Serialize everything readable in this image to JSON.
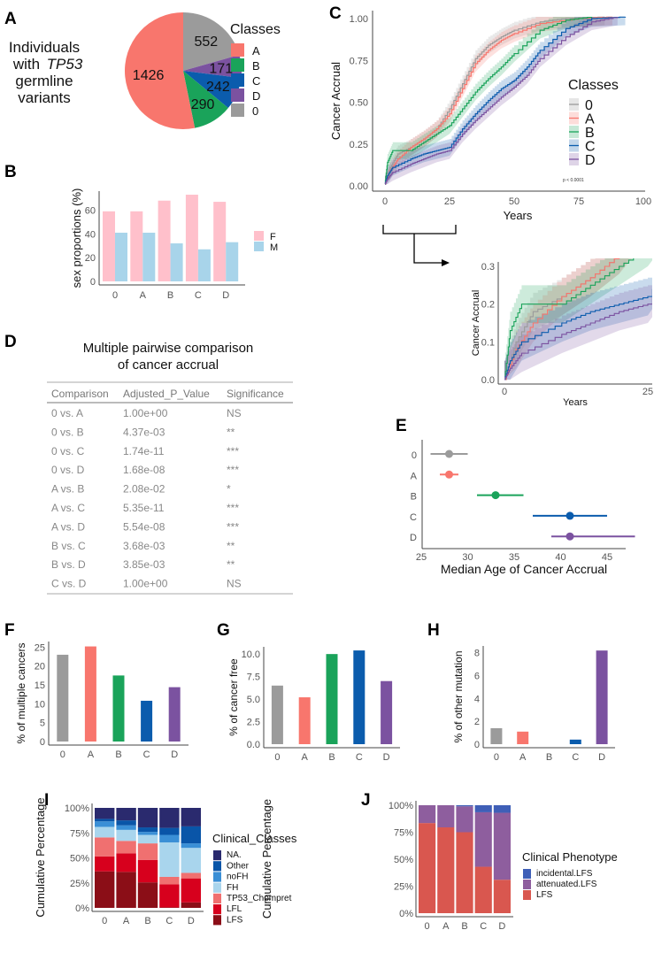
{
  "colors": {
    "0": "#9b9b9b",
    "A": "#f8766d",
    "B": "#1aa35a",
    "C": "#0b5cad",
    "D": "#7b52a0"
  },
  "panel_labels": [
    "A",
    "B",
    "C",
    "D",
    "E",
    "F",
    "G",
    "H",
    "I",
    "J"
  ],
  "chart_data": [
    {
      "id": "A",
      "type": "pie",
      "side_text": [
        "Individuals",
        "with",
        "TP53",
        "germline",
        "variants"
      ],
      "legend_title": "Classes",
      "legend": [
        "A",
        "B",
        "C",
        "D",
        "0"
      ],
      "slices": [
        {
          "label": "0",
          "value": 552
        },
        {
          "label": "D",
          "value": 171
        },
        {
          "label": "C",
          "value": 242
        },
        {
          "label": "B",
          "value": 290
        },
        {
          "label": "A",
          "value": 1426
        }
      ]
    },
    {
      "id": "B",
      "type": "bar",
      "ylabel": "sex proportions (%)",
      "categories": [
        "0",
        "A",
        "B",
        "C",
        "D"
      ],
      "yticks": [
        0,
        20,
        40,
        60
      ],
      "ylim": [
        0,
        76
      ],
      "series": [
        {
          "name": "F",
          "color": "#ffc0cb",
          "values": [
            59,
            59,
            68,
            73,
            67
          ]
        },
        {
          "name": "M",
          "color": "#a8d4ea",
          "values": [
            41,
            41,
            32,
            27,
            33
          ]
        }
      ]
    },
    {
      "id": "C",
      "type": "line",
      "xlabel": "Years",
      "ylabel": "Cancer Accrual",
      "xticks": [
        0,
        25,
        50,
        75,
        100
      ],
      "yticks": [
        "0.00",
        "0.25",
        "0.50",
        "0.75",
        "1.00"
      ],
      "xlim": [
        0,
        100
      ],
      "ylim": [
        0,
        1
      ],
      "legend_title": "Classes",
      "legend_placement": "right",
      "pvalue": "p < 0.0001",
      "series": [
        {
          "name": "0",
          "x": [
            0,
            2,
            5,
            10,
            15,
            20,
            25,
            30,
            35,
            40,
            45,
            50,
            60,
            70,
            85
          ],
          "y": [
            0,
            0.1,
            0.18,
            0.22,
            0.27,
            0.33,
            0.45,
            0.6,
            0.75,
            0.83,
            0.88,
            0.92,
            0.97,
            0.99,
            1
          ]
        },
        {
          "name": "A",
          "x": [
            0,
            2,
            5,
            10,
            15,
            20,
            25,
            30,
            35,
            40,
            45,
            50,
            60,
            75,
            88
          ],
          "y": [
            0,
            0.08,
            0.15,
            0.22,
            0.27,
            0.33,
            0.42,
            0.57,
            0.72,
            0.8,
            0.86,
            0.9,
            0.96,
            0.99,
            1
          ]
        },
        {
          "name": "B",
          "x": [
            0,
            1,
            3,
            10,
            15,
            20,
            25,
            30,
            35,
            40,
            45,
            50,
            60,
            70,
            80
          ],
          "y": [
            0,
            0.13,
            0.2,
            0.2,
            0.25,
            0.3,
            0.35,
            0.45,
            0.55,
            0.63,
            0.7,
            0.78,
            0.92,
            0.98,
            1
          ]
        },
        {
          "name": "C",
          "x": [
            0,
            1,
            3,
            10,
            15,
            20,
            25,
            30,
            35,
            40,
            45,
            50,
            55,
            60,
            70,
            80,
            93
          ],
          "y": [
            0,
            0.05,
            0.1,
            0.15,
            0.18,
            0.2,
            0.22,
            0.33,
            0.42,
            0.5,
            0.57,
            0.62,
            0.7,
            0.8,
            0.93,
            0.99,
            1
          ]
        },
        {
          "name": "D",
          "x": [
            0,
            1,
            3,
            10,
            15,
            20,
            25,
            30,
            35,
            40,
            45,
            50,
            55,
            60,
            70,
            80,
            90
          ],
          "y": [
            0,
            0.03,
            0.07,
            0.12,
            0.15,
            0.18,
            0.2,
            0.3,
            0.38,
            0.45,
            0.52,
            0.58,
            0.65,
            0.75,
            0.88,
            0.97,
            1
          ]
        }
      ],
      "inset": {
        "xlabel": "Years",
        "ylabel": "Cancer Accrual",
        "xticks": [
          0,
          25
        ],
        "yticks": [
          "0.0",
          "0.1",
          "0.2",
          "0.3"
        ],
        "xlim": [
          0,
          26
        ],
        "ylim": [
          0,
          0.3
        ]
      }
    },
    {
      "id": "D",
      "type": "table",
      "title": [
        "Multiple  pairwise comparison",
        "of cancer accrual"
      ],
      "columns": [
        "Comparison",
        "Adjusted_P_Value",
        "Significance"
      ],
      "rows": [
        [
          "0 vs. A",
          "1.00e+00",
          "NS"
        ],
        [
          "0 vs. B",
          "4.37e-03",
          "**"
        ],
        [
          "0 vs. C",
          "1.74e-11",
          "***"
        ],
        [
          "0 vs. D",
          "1.68e-08",
          "***"
        ],
        [
          "A vs. B",
          "2.08e-02",
          "*"
        ],
        [
          "A vs. C",
          "5.35e-11",
          "***"
        ],
        [
          "A vs. D",
          "5.54e-08",
          "***"
        ],
        [
          "B vs. C",
          "3.68e-03",
          "**"
        ],
        [
          "B vs. D",
          "3.85e-03",
          "**"
        ],
        [
          "C vs. D",
          "1.00e+00",
          "NS"
        ]
      ]
    },
    {
      "id": "E",
      "type": "scatter",
      "xlabel": "Median Age of Cancer Accrual",
      "xticks": [
        25,
        30,
        35,
        40,
        45
      ],
      "xlim": [
        25,
        49
      ],
      "categories": [
        "0",
        "A",
        "B",
        "C",
        "D"
      ],
      "median": [
        28,
        28,
        33,
        41,
        41
      ],
      "lower": [
        26,
        27,
        31,
        37,
        39
      ],
      "upper": [
        30,
        29,
        36,
        45,
        48
      ]
    },
    {
      "id": "F",
      "type": "bar",
      "ylabel": "% of multiple cancers",
      "categories": [
        "0",
        "A",
        "B",
        "C",
        "D"
      ],
      "yticks": [
        0,
        5,
        10,
        15,
        20,
        25
      ],
      "ylim": [
        0,
        26.5
      ],
      "values": [
        23,
        25.2,
        17.5,
        10.8,
        14.4
      ]
    },
    {
      "id": "G",
      "type": "bar",
      "ylabel": "% of cancer free",
      "categories": [
        "0",
        "A",
        "B",
        "C",
        "D"
      ],
      "yticks": [
        "0.0",
        "2.5",
        "5.0",
        "7.5",
        "10.0"
      ],
      "ylim": [
        0,
        10.8
      ],
      "values": [
        6.5,
        5.2,
        10,
        10.4,
        7
      ]
    },
    {
      "id": "H",
      "type": "bar",
      "ylabel": "% of other mutation",
      "categories": [
        "0",
        "A",
        "B",
        "C",
        "D"
      ],
      "yticks": [
        0,
        2,
        4,
        6,
        8
      ],
      "ylim": [
        0,
        8.6
      ],
      "values": [
        1.4,
        1.1,
        0,
        0.4,
        8.2
      ]
    },
    {
      "id": "I",
      "type": "bar",
      "stacked": true,
      "ylabel": "Cumulative Percentage",
      "categories": [
        "0",
        "A",
        "B",
        "C",
        "D"
      ],
      "yticks": [
        "0%",
        "25%",
        "50%",
        "75%",
        "100%"
      ],
      "legend_title": "Clinical_Classes",
      "series": [
        {
          "name": "LFS",
          "color": "#8b0e17",
          "values": [
            36.5,
            36,
            25.5,
            0.5,
            5.5
          ]
        },
        {
          "name": "LFL",
          "color": "#d7001d",
          "values": [
            15,
            18.5,
            22.5,
            23,
            24
          ]
        },
        {
          "name": "TP53_Chompret",
          "color": "#f07070",
          "values": [
            19,
            12.5,
            16.5,
            7.5,
            5.5
          ]
        },
        {
          "name": "FH",
          "color": "#a9d5ed",
          "values": [
            10.5,
            11,
            8.5,
            34.5,
            25
          ]
        },
        {
          "name": "noFH",
          "color": "#3a8fd6",
          "values": [
            5.5,
            4.5,
            3,
            7.5,
            4.5
          ]
        },
        {
          "name": "Other",
          "color": "#0955a8",
          "values": [
            2.5,
            5,
            4.5,
            7,
            17
          ]
        },
        {
          "name": "NA.",
          "color": "#2a2a6e",
          "values": [
            11,
            12.5,
            19.5,
            20,
            18.5
          ]
        }
      ]
    },
    {
      "id": "J",
      "type": "bar",
      "stacked": true,
      "ylabel": "Cumulative Percentage",
      "categories": [
        "0",
        "A",
        "B",
        "C",
        "D"
      ],
      "yticks": [
        "0%",
        "25%",
        "50%",
        "75%",
        "100%"
      ],
      "legend_title": "Clinical Phenotype",
      "series": [
        {
          "name": "LFS",
          "color": "#d9574f",
          "values": [
            83.5,
            79.5,
            75,
            43,
            31
          ]
        },
        {
          "name": "attenuated.LFS",
          "color": "#8e5e9e",
          "values": [
            16.5,
            20.5,
            24,
            50.5,
            62
          ]
        },
        {
          "name": "incidental.LFS",
          "color": "#3f5fb7",
          "values": [
            0,
            0,
            1,
            6.5,
            7
          ]
        }
      ]
    }
  ]
}
